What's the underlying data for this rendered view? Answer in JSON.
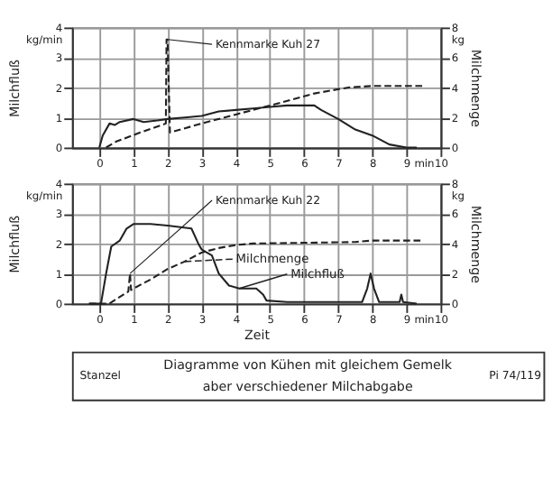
{
  "chart_data": [
    {
      "type": "line",
      "ylabel": "Milchfluß",
      "y2label": "Milchmenge",
      "xlim": [
        -0.8,
        10
      ],
      "ylim": [
        0,
        4
      ],
      "y2lim": [
        0,
        8
      ],
      "xticks": [
        0,
        1,
        2,
        3,
        4,
        5,
        6,
        7,
        8,
        9,
        {
          "value": 9.5,
          "label": "min"
        },
        10
      ],
      "yticks": [
        0,
        1,
        2,
        3,
        {
          "value": 3.6,
          "label": "kg/min"
        },
        4
      ],
      "y2ticks": [
        0,
        2,
        4,
        6,
        {
          "value": 7.2,
          "label": "kg"
        },
        8
      ],
      "grid": true,
      "marker": "none",
      "annotations": [
        {
          "text": "Kennmarke Kuh 27",
          "x": 2,
          "y": 3.6
        }
      ],
      "series": [
        {
          "color": "#222222",
          "line_style": "solid",
          "x": [
            0,
            0.1,
            0.3,
            0.45,
            0.6,
            1.0,
            1.3,
            1.7,
            2.0,
            2.5,
            3.0,
            3.5,
            4.0,
            4.5,
            5.0,
            5.5,
            6.3,
            6.5,
            7.0,
            7.5,
            8.0,
            8.5,
            9.0,
            9.3
          ],
          "values": [
            0,
            0.4,
            0.8,
            0.75,
            0.85,
            0.95,
            0.85,
            0.9,
            0.95,
            1.0,
            1.05,
            1.2,
            1.25,
            1.3,
            1.35,
            1.4,
            1.4,
            1.25,
            0.95,
            0.6,
            0.4,
            0.1,
            0,
            0
          ]
        },
        {
          "color": "#222222",
          "line_style": "dashed",
          "axis": "y2",
          "x": [
            0.2,
            0.5,
            1.2,
            1.95,
            1.97,
            2.0,
            2.07,
            3.0,
            4.0,
            5.0,
            6.3,
            7.3,
            8.0,
            9.5
          ],
          "values": [
            0,
            0.4,
            1.0,
            1.6,
            7.2,
            7.2,
            1.0,
            1.6,
            2.2,
            2.8,
            3.6,
            4.0,
            4.1,
            4.1
          ]
        }
      ]
    },
    {
      "type": "line",
      "xlabel": "Zeit",
      "ylabel": "Milchfluß",
      "y2label": "Milchmenge",
      "xlim": [
        -0.8,
        10
      ],
      "ylim": [
        0,
        4
      ],
      "y2lim": [
        0,
        8
      ],
      "xticks": [
        0,
        1,
        2,
        3,
        4,
        5,
        6,
        7,
        8,
        9,
        {
          "value": 9.5,
          "label": "min"
        },
        10
      ],
      "yticks": [
        0,
        1,
        2,
        3,
        {
          "value": 3.6,
          "label": "kg/min"
        },
        4
      ],
      "y2ticks": [
        0,
        2,
        4,
        6,
        {
          "value": 7.2,
          "label": "kg"
        },
        8
      ],
      "grid": true,
      "marker": "none",
      "legend": "center",
      "annotations": [
        {
          "text": "Kennmarke Kuh 22",
          "x": 0.9,
          "y": 1.0
        }
      ],
      "series": [
        {
          "name": "Milchfluß",
          "color": "#222222",
          "line_style": "solid",
          "x": [
            -0.3,
            0.05,
            0.2,
            0.35,
            0.6,
            0.8,
            1.0,
            1.5,
            2.0,
            2.7,
            2.9,
            3.0,
            3.3,
            3.5,
            3.8,
            4.1,
            4.6,
            4.8,
            4.9,
            5.5,
            7.7,
            7.85,
            7.95,
            8.05,
            8.2,
            8.8,
            8.85,
            8.9,
            9.3
          ],
          "values": [
            0,
            0,
            1.0,
            1.9,
            2.1,
            2.5,
            2.65,
            2.65,
            2.6,
            2.5,
            2.0,
            1.8,
            1.6,
            1.0,
            0.6,
            0.5,
            0.5,
            0.3,
            0.1,
            0.05,
            0.05,
            0.5,
            1.0,
            0.5,
            0.05,
            0.05,
            0.3,
            0.05,
            0
          ]
        },
        {
          "name": "Milchmenge",
          "color": "#222222",
          "line_style": "dashed",
          "axis": "y2",
          "x": [
            -0.3,
            0.3,
            0.5,
            0.85,
            0.9,
            0.93,
            1.0,
            1.5,
            2.0,
            2.5,
            3.0,
            3.5,
            4.0,
            4.5,
            7.5,
            8.0,
            9.5
          ],
          "values": [
            0,
            0,
            0.3,
            0.8,
            2.0,
            0.9,
            1.0,
            1.6,
            2.3,
            2.8,
            3.4,
            3.7,
            3.9,
            4.0,
            4.1,
            4.2,
            4.2
          ]
        }
      ]
    },
    {
      "type": "other",
      "title": "Diagramme von Kühen mit gleichem Gemelk aber verschiedener Milchabgabe",
      "annotations": [
        "Stanzel",
        "Pi 74/119"
      ]
    }
  ]
}
